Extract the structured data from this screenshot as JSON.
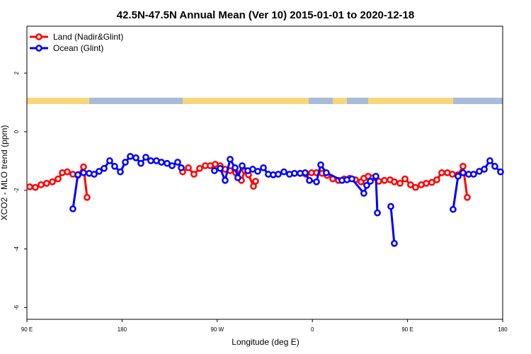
{
  "chart_data": {
    "type": "line",
    "title": "42.5N-47.5N Annual Mean (Ver 10)   2015-01-01 to 2020-12-18",
    "x_label": "Longitude (deg E)",
    "y_label": "XCO2 - MLO trend (ppm)",
    "xlim": [
      90,
      540
    ],
    "xticks": [
      {
        "value": 90,
        "label": "90 E"
      },
      180,
      {
        "value": 270,
        "label": "90 W"
      },
      {
        "value": 360,
        "label": "0"
      },
      {
        "value": 450,
        "label": "90 E"
      },
      {
        "value": 540,
        "label": "180"
      }
    ],
    "ylim": [
      -6.4,
      3.6
    ],
    "yticks": [
      -6,
      -4,
      -2,
      0,
      2
    ],
    "legend": "top-left",
    "series": [
      {
        "name": "Land (Nadir&Glint)",
        "color": "#ff0000",
        "x": [
          92.7,
          98,
          103.4,
          108.7,
          114.1,
          119.5,
          123.5,
          128.2,
          133.5,
          138.2,
          143.6,
          146.9,
          200,
          237.3,
          242.7,
          248,
          253.4,
          258.7,
          263.4,
          268.1,
          272.8,
          277.5,
          282.2,
          287.5,
          292.9,
          296.2,
          299.6,
          304.3,
          306.3,
          330,
          353.8,
          359.2,
          363.9,
          369.2,
          373.9,
          379.3,
          384.6,
          390,
          395.3,
          400.7,
          406.1,
          408.7,
          412.8,
          417.4,
          422.8,
          428.2,
          433.5,
          437.5,
          442.9,
          447.6,
          452.9,
          457.6,
          463,
          467.7,
          473,
          477.7,
          482.4,
          487.7,
          492.4,
          497.8,
          502.5,
          506.5
        ],
        "values": [
          -1.88,
          -1.9,
          -1.81,
          -1.76,
          -1.71,
          -1.61,
          -1.4,
          -1.37,
          -1.45,
          -1.49,
          -1.2,
          -2.24,
          null,
          -1.37,
          -1.23,
          -1.45,
          -1.25,
          -1.16,
          -1.16,
          -1.11,
          -1.16,
          -1.28,
          -1.33,
          -1.4,
          -1.66,
          -1.33,
          -1.47,
          -1.86,
          -1.69,
          null,
          -1.45,
          -1.4,
          -1.4,
          -1.42,
          -1.49,
          -1.61,
          -1.66,
          -1.61,
          -1.59,
          -1.64,
          -1.71,
          -1.59,
          -1.52,
          -1.57,
          -1.69,
          -1.66,
          -1.64,
          -1.71,
          -1.76,
          -1.61,
          -1.81,
          -1.9,
          -1.81,
          -1.76,
          -1.73,
          -1.64,
          -1.4,
          -1.4,
          -1.45,
          -1.47,
          -1.18,
          -2.24
        ]
      },
      {
        "name": "Ocean (Glint)",
        "color": "#0000ff",
        "x": [
          133.5,
          138.2,
          143.6,
          148.9,
          153.6,
          158.3,
          163,
          168.3,
          173,
          178.4,
          183.1,
          187.8,
          193.1,
          197.8,
          202.5,
          207.2,
          212.5,
          217.2,
          222.6,
          227.3,
          232.6,
          236,
          245,
          267.4,
          272.8,
          277.5,
          282.2,
          286.9,
          289.5,
          293.6,
          298.9,
          303.6,
          308.3,
          313.7,
          318.3,
          323,
          327.7,
          333.1,
          338.4,
          343.1,
          348.5,
          353.2,
          357.2,
          363.9,
          367.9,
          373.2,
          388,
          392.7,
          397.4,
          408.7,
          411.4,
          414.8,
          420.1,
          421.5,
          430,
          434.2,
          437.5,
          470,
          493.1,
          497.8,
          502.5,
          507.8,
          512.5,
          517.9,
          522.6,
          527.9,
          532.6,
          538
        ],
        "values": [
          -2.63,
          -1.47,
          -1.4,
          -1.42,
          -1.45,
          -1.35,
          -1.25,
          -0.99,
          -1.18,
          -1.37,
          -1.04,
          -0.84,
          -0.89,
          -1.08,
          -0.87,
          -0.99,
          -0.99,
          -1.04,
          -1.08,
          -1.16,
          -1.04,
          -1.23,
          null,
          -1.33,
          -1.25,
          -1.66,
          -0.94,
          -1.23,
          -1.57,
          -1.16,
          -1.33,
          -1.28,
          -1.35,
          -1.23,
          -1.45,
          -1.47,
          -1.45,
          -1.37,
          -1.45,
          -1.42,
          -1.42,
          -1.4,
          -1.66,
          -1.71,
          -1.13,
          -1.4,
          -1.66,
          -1.64,
          -1.61,
          -2.1,
          -1.83,
          -1.69,
          -1.52,
          -2.77,
          null,
          -2.55,
          -3.81,
          null,
          -2.65,
          -1.52,
          -1.4,
          -1.45,
          -1.45,
          -1.35,
          -1.28,
          -0.99,
          -1.18,
          -1.37
        ]
      }
    ]
  }
}
